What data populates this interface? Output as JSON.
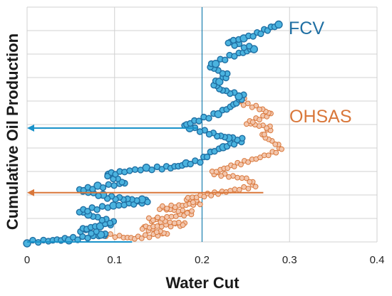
{
  "chart_data": {
    "type": "scatter",
    "xlabel": "Water Cut",
    "ylabel": "Cumulative Oil Production",
    "xlim": [
      0,
      0.4
    ],
    "ylim": [
      0,
      10
    ],
    "x_ticks": [
      {
        "value": 0,
        "label": "0"
      },
      {
        "value": 0.1,
        "label": "0.1"
      },
      {
        "value": 0.2,
        "label": "0.2"
      },
      {
        "value": 0.3,
        "label": "0.3"
      },
      {
        "value": 0.4,
        "label": "0.4"
      }
    ],
    "y_gridlines": [
      0,
      1,
      2,
      3,
      4,
      5,
      6,
      7,
      8,
      9,
      10
    ],
    "grid": true,
    "reference_line_x": 0.2,
    "series": [
      {
        "name": "FCV",
        "color": "#1f6fa3",
        "fill": "#4bb3df",
        "path": [
          [
            0,
            0
          ],
          [
            0.06,
            0.15
          ],
          [
            0.09,
            0.3
          ],
          [
            0.06,
            0.5
          ],
          [
            0.1,
            0.8
          ],
          [
            0.08,
            1.0
          ],
          [
            0.06,
            1.3
          ],
          [
            0.11,
            1.6
          ],
          [
            0.14,
            1.75
          ],
          [
            0.09,
            1.9
          ],
          [
            0.06,
            2.2
          ],
          [
            0.11,
            2.5
          ],
          [
            0.09,
            2.85
          ],
          [
            0.13,
            3.1
          ],
          [
            0.17,
            3.2
          ],
          [
            0.2,
            3.45
          ],
          [
            0.21,
            3.85
          ],
          [
            0.23,
            4.15
          ],
          [
            0.25,
            4.35
          ],
          [
            0.22,
            4.5
          ],
          [
            0.2,
            4.7
          ],
          [
            0.18,
            4.95
          ],
          [
            0.21,
            5.35
          ],
          [
            0.23,
            5.75
          ],
          [
            0.25,
            6.2
          ],
          [
            0.22,
            6.5
          ],
          [
            0.21,
            6.75
          ],
          [
            0.23,
            7.1
          ],
          [
            0.21,
            7.5
          ],
          [
            0.23,
            7.9
          ],
          [
            0.26,
            8.25
          ],
          [
            0.23,
            8.5
          ],
          [
            0.26,
            8.85
          ],
          [
            0.29,
            9.25
          ]
        ],
        "count": 190
      },
      {
        "name": "OHSAS",
        "color": "#d9773a",
        "fill": "#f2c6ad",
        "path": [
          [
            0.09,
            0.3
          ],
          [
            0.12,
            0.15
          ],
          [
            0.16,
            0.35
          ],
          [
            0.13,
            0.6
          ],
          [
            0.18,
            0.75
          ],
          [
            0.14,
            0.95
          ],
          [
            0.16,
            1.05
          ],
          [
            0.19,
            1.25
          ],
          [
            0.15,
            1.45
          ],
          [
            0.2,
            1.65
          ],
          [
            0.18,
            1.85
          ],
          [
            0.23,
            2.15
          ],
          [
            0.26,
            2.4
          ],
          [
            0.25,
            2.7
          ],
          [
            0.21,
            2.95
          ],
          [
            0.23,
            3.2
          ],
          [
            0.26,
            3.5
          ],
          [
            0.28,
            3.8
          ],
          [
            0.29,
            4.0
          ],
          [
            0.28,
            4.3
          ],
          [
            0.27,
            4.55
          ],
          [
            0.28,
            4.85
          ],
          [
            0.25,
            5.05
          ],
          [
            0.27,
            5.3
          ],
          [
            0.28,
            5.45
          ],
          [
            0.26,
            5.75
          ],
          [
            0.24,
            5.95
          ],
          [
            0.25,
            6.1
          ]
        ],
        "count": 160
      }
    ],
    "arrows": [
      {
        "color": "#1a92c9",
        "y": 4.85,
        "from_x": 0.195,
        "to_x": 0.0
      },
      {
        "color": "#d9773a",
        "y": 2.1,
        "from_x": 0.27,
        "to_x": 0.0
      },
      {
        "color": "#1a92c9",
        "y": 0.0,
        "from_x": 0.12,
        "to_x": 0.0,
        "head": false
      }
    ]
  }
}
